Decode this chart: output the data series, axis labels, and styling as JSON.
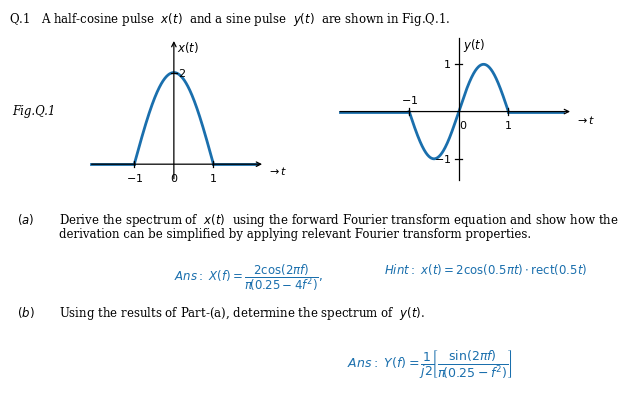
{
  "bg_color": "#ffffff",
  "curve_color": "#1a6fad",
  "axis_color": "#000000",
  "text_color": "#000000",
  "ans_color": "#1a6fad",
  "title": "Q.1   A half-cosine pulse  $x(t)$  and a sine pulse  $y(t)$  are shown in Fig.Q.1.",
  "fig_label": "Fig.Q.1",
  "part_a_line1": "Derive the spectrum of  $x(t)$  using the forward Fourier transform equation and show how the",
  "part_a_line2": "derivation can be simplified by applying relevant Fourier transform properties.",
  "part_b_line": "Using the results of Part-(a), determine the spectrum of  $y(t)$.",
  "ans_a_left": "$Ans:\\; X(f) = \\dfrac{2\\cos(2\\pi f)}{\\pi\\!\\left(0.25-4f^2\\right)},$",
  "ans_a_right": "$Hint:\\; x(t) = 2\\cos(0.5\\pi t) \\cdot \\mathrm{rect}(0.5t)$",
  "ans_b": "$Ans:\\; Y(f) = \\dfrac{1}{j2}\\!\\left[\\dfrac{\\sin(2\\pi f)}{\\pi\\!\\left(0.25 - f^2\\right)}\\right]$"
}
